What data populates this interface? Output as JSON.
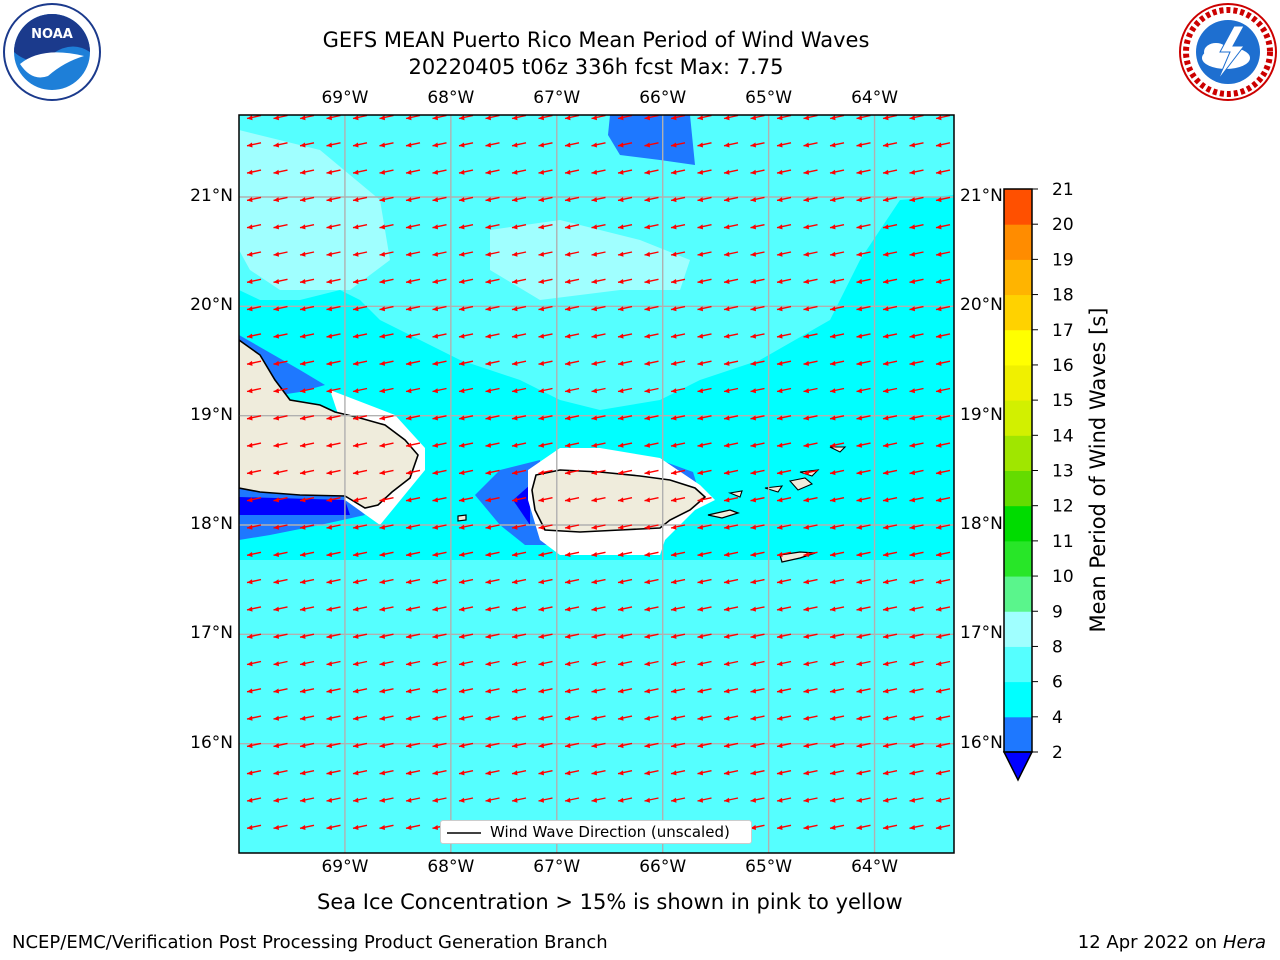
{
  "header": {
    "title_line1": "GEFS MEAN Puerto Rico Mean Period of Wind Waves",
    "title_line2": "20220405 t06z 336h fcst   Max: 7.75"
  },
  "logos": {
    "left": {
      "name": "noaa-logo",
      "text": "NOAA",
      "ring_text": "NATIONAL OCEANIC AND ATMOSPHERIC ADMINISTRATION · U.S. DEPARTMENT OF COMMERCE"
    },
    "right": {
      "name": "nws-logo",
      "ring_text": "NATIONAL WEATHER SERVICE"
    }
  },
  "map": {
    "lon_range": [
      -70.0,
      -63.25
    ],
    "lat_range": [
      15.0,
      21.75
    ],
    "lon_ticks": [
      "69°W",
      "68°W",
      "67°W",
      "66°W",
      "65°W",
      "64°W"
    ],
    "lat_ticks": [
      "21°N",
      "20°N",
      "19°N",
      "18°N",
      "17°N",
      "16°N"
    ],
    "grid": true,
    "ocean_color": "#00ffff",
    "land_color": "#efecdc",
    "arrow_color": "#ff0000",
    "arrow_direction": "toward west-southwest"
  },
  "legend": {
    "label": "Wind Wave Direction (unscaled)",
    "placement": "bottom-center"
  },
  "colorbar": {
    "label": "Mean Period of Wind Waves [s]",
    "levels": [
      2,
      4,
      6,
      8,
      9,
      10,
      11,
      12,
      13,
      14,
      15,
      16,
      17,
      18,
      19,
      20,
      21
    ],
    "tick_labels": [
      "2",
      "4",
      "6",
      "8",
      "9",
      "10",
      "11",
      "12",
      "13",
      "14",
      "15",
      "16",
      "17",
      "18",
      "19",
      "20",
      "21"
    ],
    "colors": [
      "#1e78ff",
      "#00ffff",
      "#55ffff",
      "#a0ffff",
      "#5af58c",
      "#28e628",
      "#00dc00",
      "#64dc00",
      "#a0e600",
      "#d2f000",
      "#f0f000",
      "#ffff00",
      "#ffd200",
      "#ffb400",
      "#ff8c00",
      "#ff5000",
      "#ff2800",
      "#ff0000"
    ],
    "under_color": "#0000ff",
    "extend": "min"
  },
  "note": "Sea Ice Concentration > 15% is shown in pink to yellow",
  "footer": {
    "left": "NCEP/EMC/Verification Post Processing Product Generation Branch",
    "right_prefix": "12 Apr 2022 on ",
    "right_host": "Hera"
  }
}
